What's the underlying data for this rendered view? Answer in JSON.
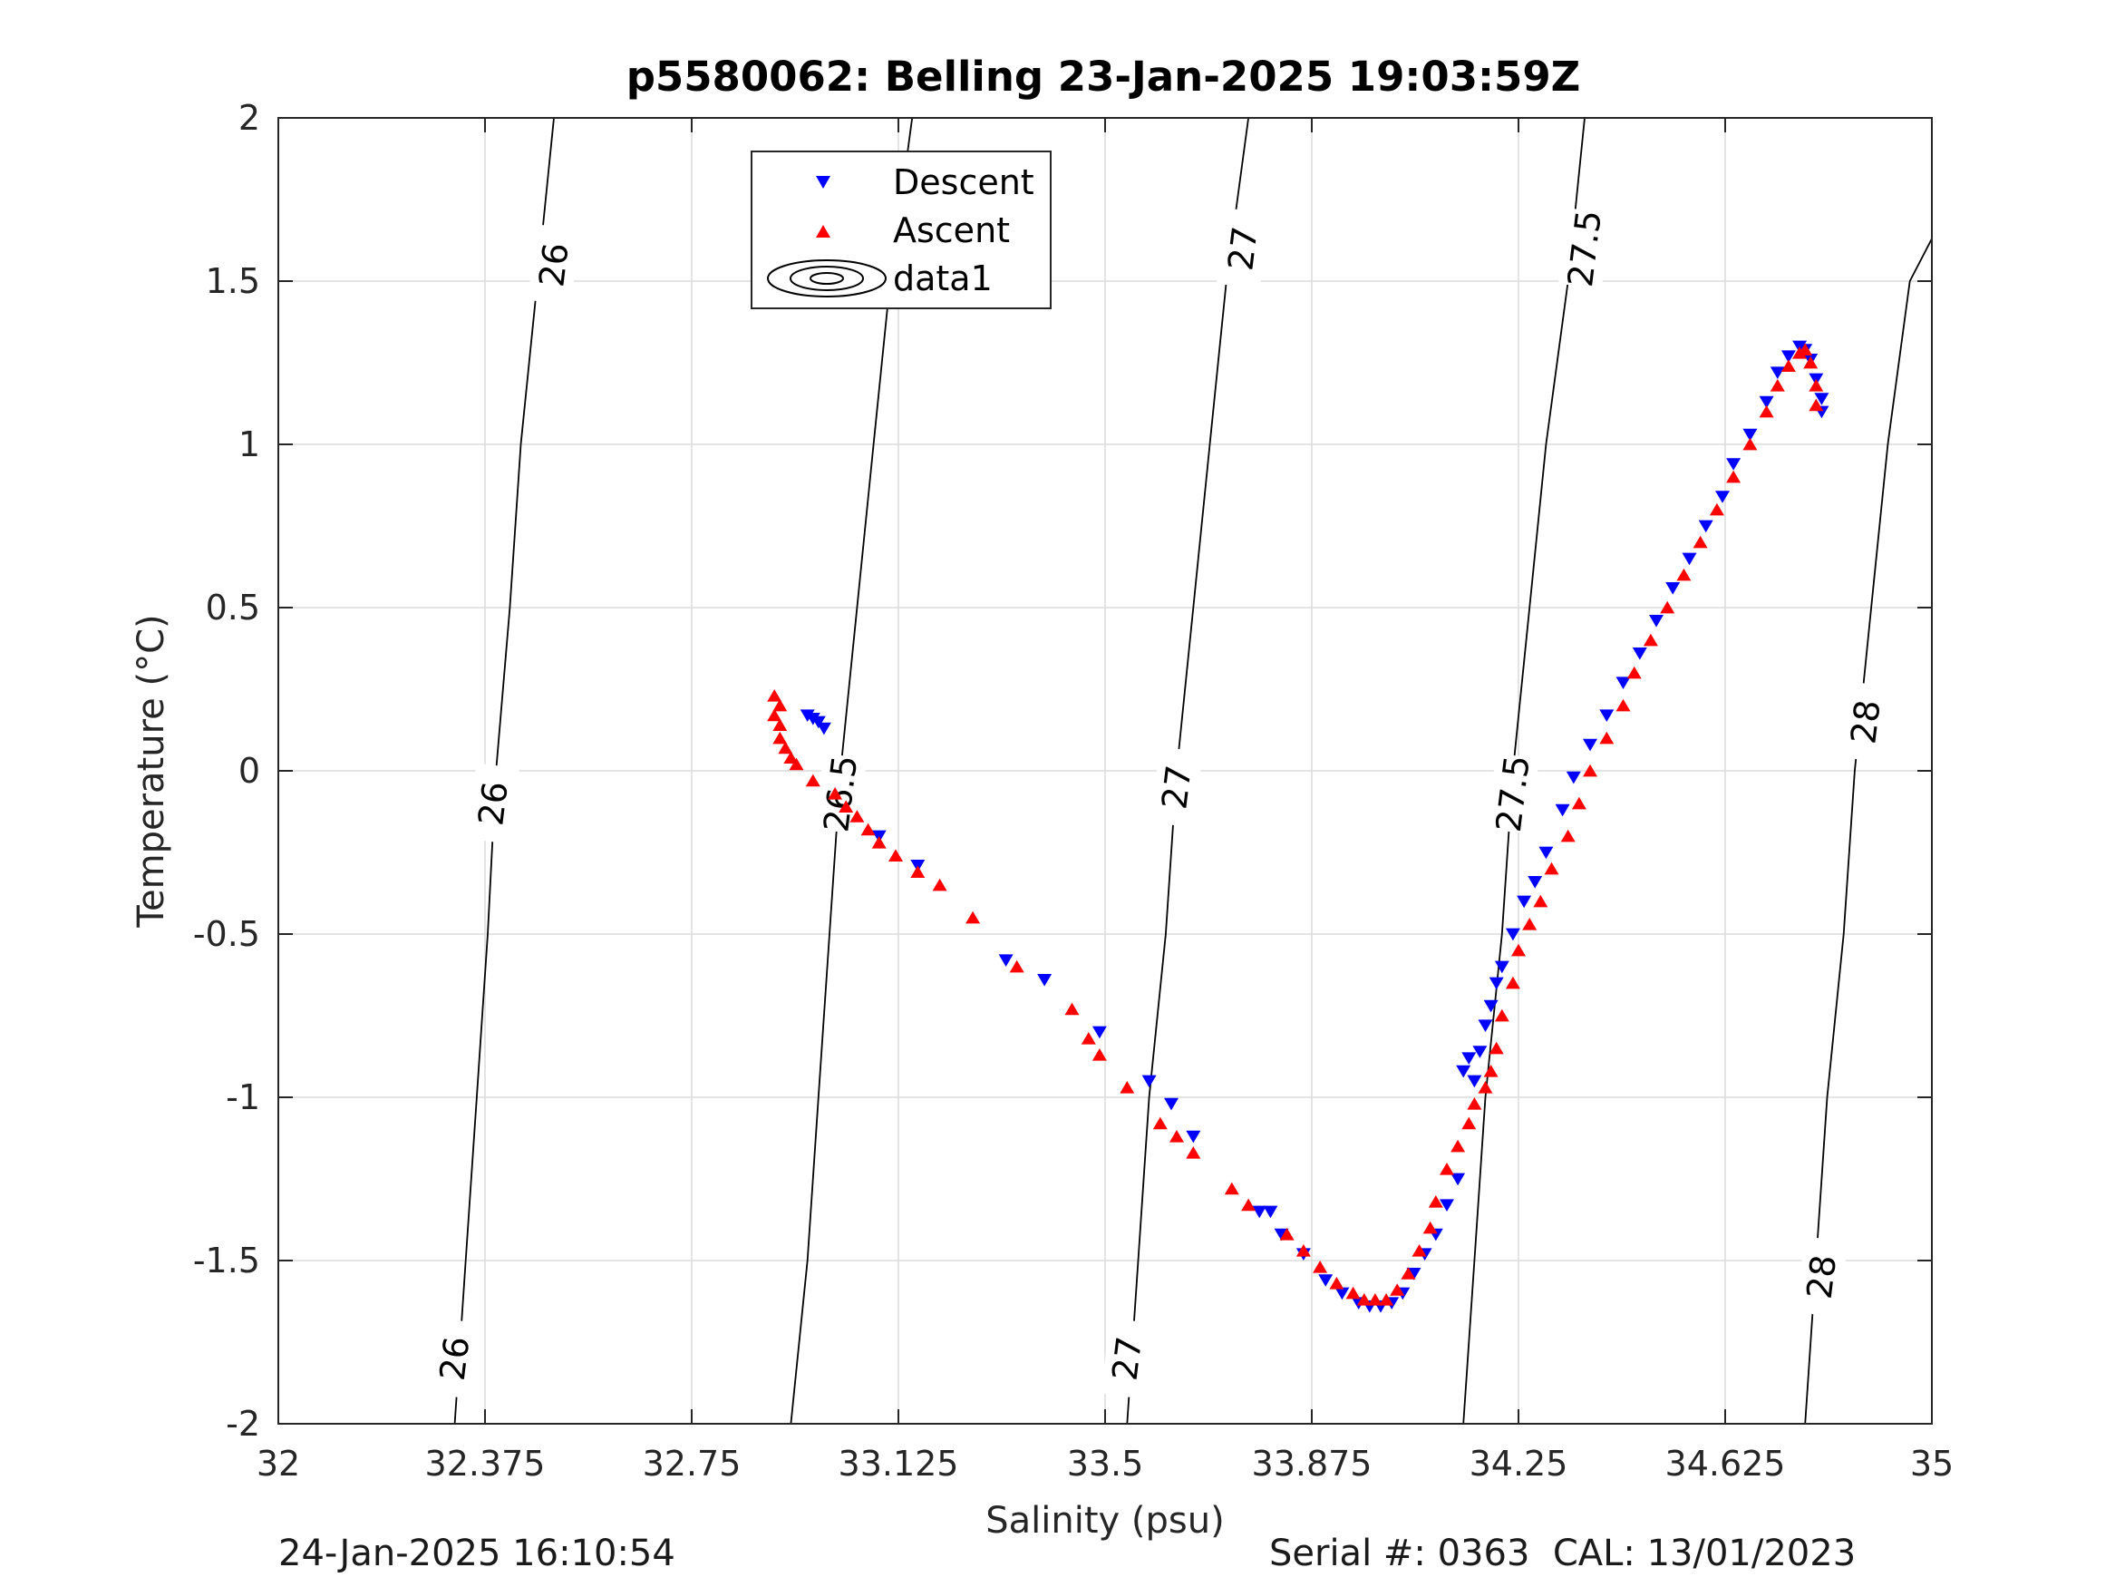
{
  "chart_data": {
    "type": "scatter",
    "title": "p5580062: Belling 23-Jan-2025 19:03:59Z",
    "xlabel": "Salinity (psu)",
    "ylabel": "Temperature (°C)",
    "xlim": [
      32,
      35
    ],
    "ylim": [
      -2,
      2
    ],
    "x_ticks": [
      32,
      32.375,
      32.75,
      33.125,
      33.5,
      33.875,
      34.25,
      34.625,
      35
    ],
    "x_tick_labels": [
      "32",
      "32.375",
      "32.75",
      "33.125",
      "33.5",
      "33.875",
      "34.25",
      "34.625",
      "35"
    ],
    "y_ticks": [
      -2,
      -1.5,
      -1,
      -0.5,
      0,
      0.5,
      1,
      1.5,
      2
    ],
    "y_tick_labels": [
      "-2",
      "-1.5",
      "-1",
      "-0.5",
      "0",
      "0.5",
      "1",
      "1.5",
      "2"
    ],
    "grid": true,
    "legend_position": "top-center",
    "legend": [
      "Descent",
      "Ascent",
      "data1"
    ],
    "series": [
      {
        "name": "Descent",
        "marker": "triangle-down",
        "color": "#0000ff",
        "points": [
          [
            32.96,
            0.17
          ],
          [
            32.97,
            0.16
          ],
          [
            32.98,
            0.15
          ],
          [
            32.99,
            0.13
          ],
          [
            33.09,
            -0.2
          ],
          [
            33.16,
            -0.29
          ],
          [
            33.32,
            -0.58
          ],
          [
            33.39,
            -0.64
          ],
          [
            33.49,
            -0.8
          ],
          [
            33.58,
            -0.95
          ],
          [
            33.62,
            -1.02
          ],
          [
            33.66,
            -1.12
          ],
          [
            33.78,
            -1.35
          ],
          [
            33.8,
            -1.35
          ],
          [
            33.82,
            -1.42
          ],
          [
            33.86,
            -1.48
          ],
          [
            33.9,
            -1.56
          ],
          [
            33.93,
            -1.6
          ],
          [
            33.96,
            -1.63
          ],
          [
            33.98,
            -1.64
          ],
          [
            34.0,
            -1.64
          ],
          [
            34.02,
            -1.63
          ],
          [
            34.04,
            -1.6
          ],
          [
            34.06,
            -1.54
          ],
          [
            34.08,
            -1.48
          ],
          [
            34.1,
            -1.42
          ],
          [
            34.12,
            -1.33
          ],
          [
            34.14,
            -1.25
          ],
          [
            34.15,
            -0.92
          ],
          [
            34.16,
            -0.88
          ],
          [
            34.17,
            -0.95
          ],
          [
            34.18,
            -0.86
          ],
          [
            34.19,
            -0.78
          ],
          [
            34.2,
            -0.72
          ],
          [
            34.21,
            -0.65
          ],
          [
            34.22,
            -0.6
          ],
          [
            34.24,
            -0.5
          ],
          [
            34.26,
            -0.4
          ],
          [
            34.28,
            -0.34
          ],
          [
            34.3,
            -0.25
          ],
          [
            34.33,
            -0.12
          ],
          [
            34.35,
            -0.02
          ],
          [
            34.38,
            0.08
          ],
          [
            34.41,
            0.17
          ],
          [
            34.44,
            0.27
          ],
          [
            34.47,
            0.36
          ],
          [
            34.5,
            0.46
          ],
          [
            34.53,
            0.56
          ],
          [
            34.56,
            0.65
          ],
          [
            34.59,
            0.75
          ],
          [
            34.62,
            0.84
          ],
          [
            34.64,
            0.94
          ],
          [
            34.67,
            1.03
          ],
          [
            34.7,
            1.13
          ],
          [
            34.72,
            1.22
          ],
          [
            34.74,
            1.27
          ],
          [
            34.76,
            1.3
          ],
          [
            34.77,
            1.29
          ],
          [
            34.78,
            1.26
          ],
          [
            34.79,
            1.2
          ],
          [
            34.8,
            1.14
          ],
          [
            34.8,
            1.1
          ]
        ]
      },
      {
        "name": "Ascent",
        "marker": "triangle-up",
        "color": "#ff0000",
        "points": [
          [
            32.9,
            0.23
          ],
          [
            32.91,
            0.2
          ],
          [
            32.9,
            0.17
          ],
          [
            32.91,
            0.14
          ],
          [
            32.91,
            0.1
          ],
          [
            32.92,
            0.07
          ],
          [
            32.93,
            0.04
          ],
          [
            32.94,
            0.02
          ],
          [
            32.97,
            -0.03
          ],
          [
            33.01,
            -0.07
          ],
          [
            33.03,
            -0.11
          ],
          [
            33.05,
            -0.14
          ],
          [
            33.07,
            -0.18
          ],
          [
            33.09,
            -0.22
          ],
          [
            33.12,
            -0.26
          ],
          [
            33.16,
            -0.31
          ],
          [
            33.2,
            -0.35
          ],
          [
            33.26,
            -0.45
          ],
          [
            33.34,
            -0.6
          ],
          [
            33.44,
            -0.73
          ],
          [
            33.47,
            -0.82
          ],
          [
            33.49,
            -0.87
          ],
          [
            33.54,
            -0.97
          ],
          [
            33.6,
            -1.08
          ],
          [
            33.63,
            -1.12
          ],
          [
            33.66,
            -1.17
          ],
          [
            33.73,
            -1.28
          ],
          [
            33.76,
            -1.33
          ],
          [
            33.83,
            -1.42
          ],
          [
            33.86,
            -1.47
          ],
          [
            33.89,
            -1.52
          ],
          [
            33.92,
            -1.57
          ],
          [
            33.95,
            -1.6
          ],
          [
            33.97,
            -1.62
          ],
          [
            33.99,
            -1.62
          ],
          [
            34.01,
            -1.62
          ],
          [
            34.03,
            -1.59
          ],
          [
            34.05,
            -1.54
          ],
          [
            34.07,
            -1.47
          ],
          [
            34.09,
            -1.4
          ],
          [
            34.1,
            -1.32
          ],
          [
            34.12,
            -1.22
          ],
          [
            34.14,
            -1.15
          ],
          [
            34.16,
            -1.08
          ],
          [
            34.17,
            -1.02
          ],
          [
            34.19,
            -0.97
          ],
          [
            34.2,
            -0.92
          ],
          [
            34.21,
            -0.85
          ],
          [
            34.22,
            -0.75
          ],
          [
            34.24,
            -0.65
          ],
          [
            34.25,
            -0.55
          ],
          [
            34.27,
            -0.47
          ],
          [
            34.29,
            -0.4
          ],
          [
            34.31,
            -0.3
          ],
          [
            34.34,
            -0.2
          ],
          [
            34.36,
            -0.1
          ],
          [
            34.38,
            0.0
          ],
          [
            34.41,
            0.1
          ],
          [
            34.44,
            0.2
          ],
          [
            34.46,
            0.3
          ],
          [
            34.49,
            0.4
          ],
          [
            34.52,
            0.5
          ],
          [
            34.55,
            0.6
          ],
          [
            34.58,
            0.7
          ],
          [
            34.61,
            0.8
          ],
          [
            34.64,
            0.9
          ],
          [
            34.67,
            1.0
          ],
          [
            34.7,
            1.1
          ],
          [
            34.72,
            1.18
          ],
          [
            34.74,
            1.24
          ],
          [
            34.76,
            1.28
          ],
          [
            34.77,
            1.29
          ],
          [
            34.78,
            1.25
          ],
          [
            34.79,
            1.18
          ],
          [
            34.79,
            1.12
          ]
        ]
      }
    ],
    "contour_series_name": "data1",
    "contours": [
      {
        "level": "26",
        "points": [
          [
            32.32,
            -2
          ],
          [
            32.34,
            -1.5
          ],
          [
            32.36,
            -1
          ],
          [
            32.38,
            -0.5
          ],
          [
            32.395,
            0
          ],
          [
            32.42,
            0.5
          ],
          [
            32.44,
            1
          ],
          [
            32.47,
            1.5
          ],
          [
            32.5,
            2
          ]
        ],
        "labels": [
          [
            32.32,
            -1.8
          ],
          [
            32.39,
            -0.1
          ],
          [
            32.5,
            1.55
          ]
        ]
      },
      {
        "level": "26.5",
        "points": [
          [
            32.93,
            -2
          ],
          [
            32.96,
            -1.5
          ],
          [
            32.98,
            -1
          ],
          [
            33.0,
            -0.5
          ],
          [
            33.02,
            0
          ],
          [
            33.05,
            0.5
          ],
          [
            33.08,
            1
          ],
          [
            33.11,
            1.5
          ],
          [
            33.15,
            2
          ]
        ],
        "labels": [
          [
            33.02,
            -0.07
          ],
          [
            33.11,
            1.6
          ]
        ]
      },
      {
        "level": "27",
        "points": [
          [
            33.54,
            -2
          ],
          [
            33.56,
            -1.5
          ],
          [
            33.58,
            -1
          ],
          [
            33.61,
            -0.5
          ],
          [
            33.63,
            0
          ],
          [
            33.66,
            0.5
          ],
          [
            33.69,
            1
          ],
          [
            33.72,
            1.5
          ],
          [
            33.76,
            2
          ]
        ],
        "labels": [
          [
            33.54,
            -1.8
          ],
          [
            33.63,
            -0.05
          ],
          [
            33.75,
            1.6
          ]
        ]
      },
      {
        "level": "27.5",
        "points": [
          [
            34.15,
            -2
          ],
          [
            34.17,
            -1.5
          ],
          [
            34.19,
            -1
          ],
          [
            34.22,
            -0.5
          ],
          [
            34.24,
            0
          ],
          [
            34.27,
            0.5
          ],
          [
            34.3,
            1
          ],
          [
            34.34,
            1.5
          ],
          [
            34.37,
            2
          ]
        ],
        "labels": [
          [
            34.24,
            -0.07
          ],
          [
            34.37,
            1.6
          ]
        ]
      },
      {
        "level": "28",
        "points": [
          [
            34.77,
            -2
          ],
          [
            34.79,
            -1.5
          ],
          [
            34.81,
            -1
          ],
          [
            34.84,
            -0.5
          ],
          [
            34.86,
            0
          ],
          [
            34.89,
            0.5
          ],
          [
            34.92,
            1
          ],
          [
            34.96,
            1.5
          ],
          [
            35.0,
            1.63
          ]
        ],
        "labels": [
          [
            34.8,
            -1.55
          ],
          [
            34.88,
            0.15
          ]
        ]
      }
    ]
  },
  "footer": {
    "left": "24-Jan-2025 16:10:54",
    "right": "Serial #: 0363  CAL: 13/01/2023"
  },
  "colors": {
    "descent": "#0000ff",
    "ascent": "#ff0000",
    "grid": "#dcdcdc",
    "axis": "#262626",
    "contour": "#000000"
  }
}
